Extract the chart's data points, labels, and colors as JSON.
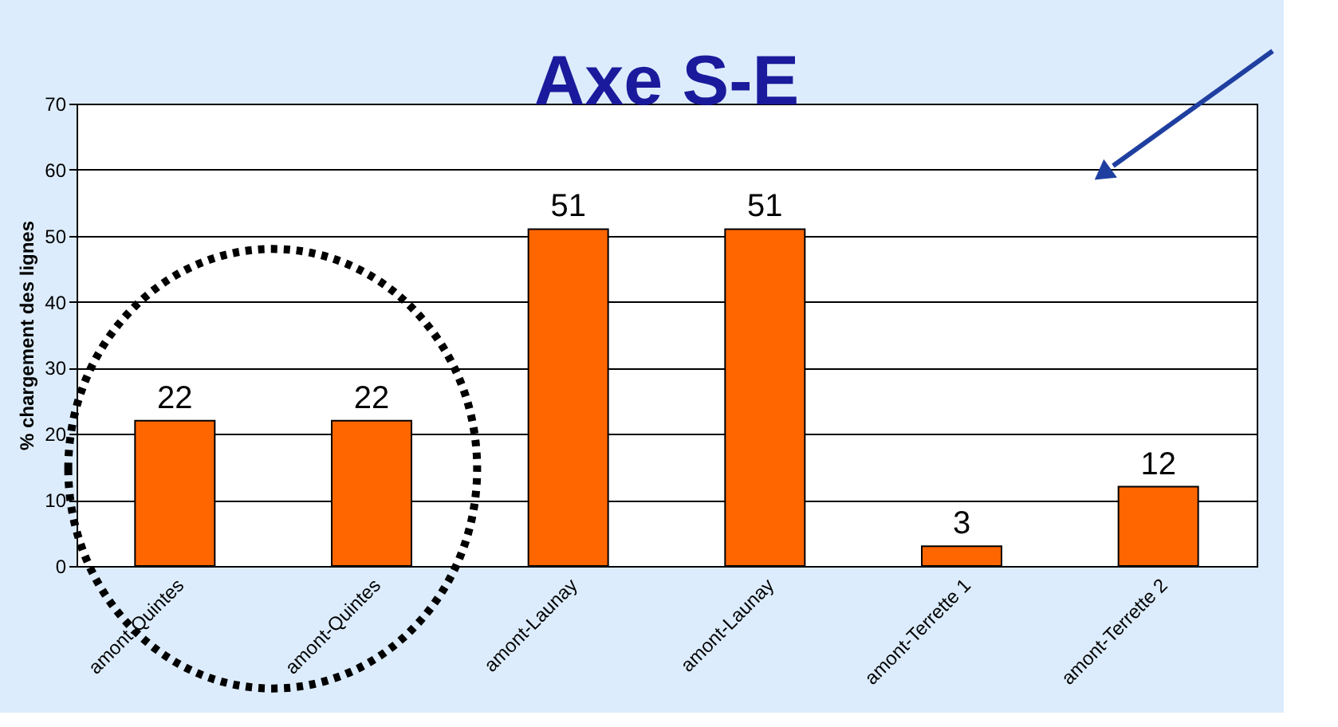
{
  "chart_data": {
    "type": "bar",
    "title": "Axe S-E",
    "ylabel": "% chargement des lignes",
    "categories": [
      "amont-Quintes",
      "amont-Quintes",
      "amont-Launay",
      "amont-Launay",
      "amont-Terrette 1",
      "amont-Terrette 2"
    ],
    "values": [
      22,
      22,
      51,
      51,
      3,
      12
    ],
    "color": "#ff6600",
    "ylim": [
      0,
      70
    ],
    "yticks": [
      0,
      10,
      20,
      30,
      40,
      50,
      60,
      70
    ],
    "grid": "y",
    "data_labels": true
  }
}
